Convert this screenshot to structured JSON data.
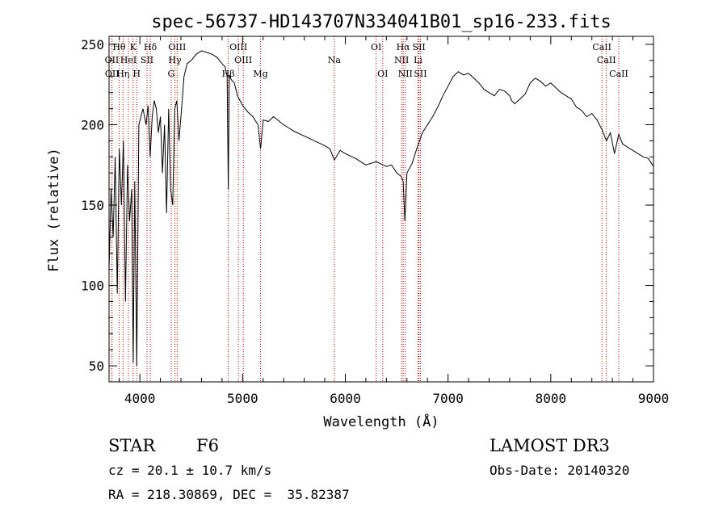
{
  "chart_data": {
    "type": "line",
    "title": "spec-56737-HD143707N334041B01_sp16-233.fits",
    "xlabel": "Wavelength (Å)",
    "ylabel": "Flux (relative)",
    "xlim": [
      3700,
      9000
    ],
    "ylim": [
      40,
      255
    ],
    "x_ticks": [
      4000,
      5000,
      6000,
      7000,
      8000,
      9000
    ],
    "y_ticks": [
      50,
      100,
      150,
      200,
      250
    ],
    "grid": false,
    "series": [
      {
        "name": "spectrum",
        "x": [
          3700,
          3720,
          3740,
          3760,
          3780,
          3800,
          3820,
          3840,
          3860,
          3880,
          3900,
          3920,
          3935,
          3950,
          3970,
          3990,
          4010,
          4030,
          4060,
          4080,
          4100,
          4120,
          4140,
          4160,
          4180,
          4200,
          4220,
          4240,
          4260,
          4280,
          4300,
          4320,
          4340,
          4360,
          4380,
          4400,
          4430,
          4460,
          4500,
          4550,
          4600,
          4650,
          4700,
          4750,
          4800,
          4830,
          4850,
          4861,
          4870,
          4890,
          4920,
          4950,
          5000,
          5050,
          5100,
          5150,
          5175,
          5200,
          5250,
          5300,
          5400,
          5500,
          5600,
          5700,
          5800,
          5850,
          5893,
          5950,
          6000,
          6100,
          6200,
          6300,
          6400,
          6450,
          6500,
          6540,
          6563,
          6580,
          6600,
          6650,
          6700,
          6750,
          6800,
          6850,
          6900,
          6950,
          7000,
          7050,
          7100,
          7150,
          7200,
          7250,
          7300,
          7350,
          7400,
          7450,
          7500,
          7550,
          7600,
          7620,
          7650,
          7700,
          7750,
          7800,
          7850,
          7900,
          7950,
          8000,
          8050,
          8100,
          8150,
          8200,
          8250,
          8300,
          8350,
          8400,
          8450,
          8498,
          8542,
          8580,
          8620,
          8662,
          8700,
          8750,
          8800,
          8850,
          8900,
          8950,
          9000
        ],
        "y": [
          110,
          160,
          130,
          180,
          95,
          185,
          150,
          190,
          90,
          175,
          140,
          160,
          52,
          165,
          50,
          200,
          205,
          210,
          200,
          212,
          180,
          205,
          215,
          210,
          195,
          205,
          170,
          200,
          145,
          210,
          160,
          150,
          210,
          215,
          190,
          205,
          230,
          238,
          240,
          244,
          246,
          245,
          244,
          242,
          238,
          236,
          230,
          160,
          231,
          228,
          226,
          218,
          212,
          208,
          205,
          200,
          185,
          203,
          202,
          205,
          200,
          196,
          193,
          190,
          187,
          185,
          178,
          184,
          182,
          179,
          175,
          177,
          174,
          175,
          170,
          168,
          165,
          140,
          170,
          176,
          186,
          195,
          200,
          205,
          211,
          218,
          224,
          230,
          233,
          231,
          232,
          229,
          226,
          222,
          220,
          218,
          222,
          221,
          218,
          215,
          213,
          216,
          219,
          226,
          229,
          227,
          224,
          226,
          223,
          220,
          218,
          216,
          211,
          209,
          205,
          207,
          203,
          197,
          190,
          195,
          182,
          194,
          188,
          186,
          184,
          182,
          180,
          179,
          174
        ]
      }
    ],
    "line_markers": [
      {
        "label": "Hθ",
        "wavelength": 3798,
        "label_row": 1
      },
      {
        "label": "OII",
        "wavelength": 3727,
        "label_row": 2
      },
      {
        "label": "OII",
        "wavelength": 3729,
        "label_row": 3
      },
      {
        "label": "Hη",
        "wavelength": 3836,
        "label_row": 3
      },
      {
        "label": "K",
        "wavelength": 3934,
        "label_row": 1
      },
      {
        "label": "HeI",
        "wavelength": 3889,
        "label_row": 2
      },
      {
        "label": "SII",
        "wavelength": 4070,
        "label_row": 2
      },
      {
        "label": "H",
        "wavelength": 3969,
        "label_row": 3
      },
      {
        "label": "Hδ",
        "wavelength": 4102,
        "label_row": 1
      },
      {
        "label": "OIII",
        "wavelength": 4363,
        "label_row": 1
      },
      {
        "label": "Hγ",
        "wavelength": 4341,
        "label_row": 2
      },
      {
        "label": "G",
        "wavelength": 4305,
        "label_row": 3
      },
      {
        "label": "OIII",
        "wavelength": 4959,
        "label_row": 1
      },
      {
        "label": "OIII",
        "wavelength": 5007,
        "label_row": 2
      },
      {
        "label": "Hβ",
        "wavelength": 4861,
        "label_row": 3
      },
      {
        "label": "Mg",
        "wavelength": 5175,
        "label_row": 3
      },
      {
        "label": "Na",
        "wavelength": 5893,
        "label_row": 2
      },
      {
        "label": "OI",
        "wavelength": 6300,
        "label_row": 1
      },
      {
        "label": "OI",
        "wavelength": 6364,
        "label_row": 3
      },
      {
        "label": "Hα",
        "wavelength": 6563,
        "label_row": 1
      },
      {
        "label": "NII",
        "wavelength": 6548,
        "label_row": 2
      },
      {
        "label": "NII",
        "wavelength": 6584,
        "label_row": 3
      },
      {
        "label": "SII",
        "wavelength": 6717,
        "label_row": 1
      },
      {
        "label": "Li",
        "wavelength": 6708,
        "label_row": 2
      },
      {
        "label": "SII",
        "wavelength": 6731,
        "label_row": 3
      },
      {
        "label": "CaII",
        "wavelength": 8498,
        "label_row": 1
      },
      {
        "label": "CaII",
        "wavelength": 8542,
        "label_row": 2
      },
      {
        "label": "CaII",
        "wavelength": 8662,
        "label_row": 3
      }
    ],
    "colors": {
      "spectrum": "#000000",
      "line_markers": "#cc0000",
      "axes": "#000000"
    }
  },
  "info": {
    "class_label": "STAR",
    "subclass": "F6",
    "cz": "cz = 20.1 ± 10.7 km/s",
    "coords": "RA = 218.30869, DEC =  35.82387",
    "survey": "LAMOST DR3",
    "obs_date": "Obs-Date: 20140320"
  }
}
